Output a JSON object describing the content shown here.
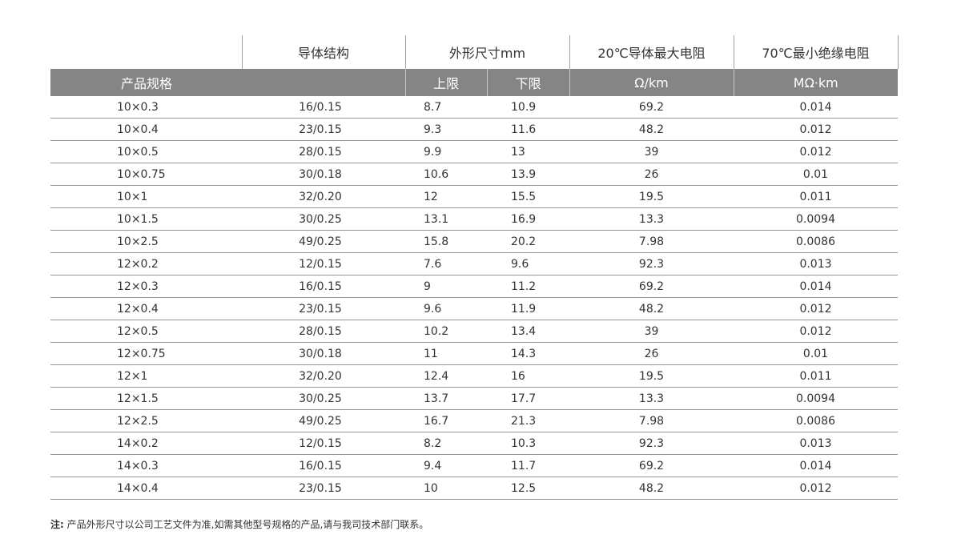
{
  "header": {
    "conductor": "导体结构",
    "outer_size": "外形尺寸mm",
    "resistance": "20℃导体最大电阻",
    "insulation": "70℃最小绝缘电阻",
    "spec": "产品规格",
    "upper": "上限",
    "lower": "下限",
    "resistance_unit": "Ω/km",
    "insulation_unit": "MΩ·km"
  },
  "rows": [
    {
      "spec": "10×0.3",
      "conductor": "16/0.15",
      "upper": "8.7",
      "lower": "10.9",
      "resistance": "69.2",
      "insulation": "0.014"
    },
    {
      "spec": "10×0.4",
      "conductor": "23/0.15",
      "upper": "9.3",
      "lower": "11.6",
      "resistance": "48.2",
      "insulation": "0.012"
    },
    {
      "spec": "10×0.5",
      "conductor": "28/0.15",
      "upper": "9.9",
      "lower": "13",
      "resistance": "39",
      "insulation": "0.012"
    },
    {
      "spec": "10×0.75",
      "conductor": "30/0.18",
      "upper": "10.6",
      "lower": "13.9",
      "resistance": "26",
      "insulation": "0.01"
    },
    {
      "spec": "10×1",
      "conductor": "32/0.20",
      "upper": "12",
      "lower": "15.5",
      "resistance": "19.5",
      "insulation": "0.011"
    },
    {
      "spec": "10×1.5",
      "conductor": "30/0.25",
      "upper": "13.1",
      "lower": "16.9",
      "resistance": "13.3",
      "insulation": "0.0094"
    },
    {
      "spec": "10×2.5",
      "conductor": "49/0.25",
      "upper": "15.8",
      "lower": "20.2",
      "resistance": "7.98",
      "insulation": "0.0086"
    },
    {
      "spec": "12×0.2",
      "conductor": "12/0.15",
      "upper": "7.6",
      "lower": "9.6",
      "resistance": "92.3",
      "insulation": "0.013"
    },
    {
      "spec": "12×0.3",
      "conductor": "16/0.15",
      "upper": "9",
      "lower": "11.2",
      "resistance": "69.2",
      "insulation": "0.014"
    },
    {
      "spec": "12×0.4",
      "conductor": "23/0.15",
      "upper": "9.6",
      "lower": "11.9",
      "resistance": "48.2",
      "insulation": "0.012"
    },
    {
      "spec": "12×0.5",
      "conductor": "28/0.15",
      "upper": "10.2",
      "lower": "13.4",
      "resistance": "39",
      "insulation": "0.012"
    },
    {
      "spec": "12×0.75",
      "conductor": "30/0.18",
      "upper": "11",
      "lower": "14.3",
      "resistance": "26",
      "insulation": "0.01"
    },
    {
      "spec": "12×1",
      "conductor": "32/0.20",
      "upper": "12.4",
      "lower": "16",
      "resistance": "19.5",
      "insulation": "0.011"
    },
    {
      "spec": "12×1.5",
      "conductor": "30/0.25",
      "upper": "13.7",
      "lower": "17.7",
      "resistance": "13.3",
      "insulation": "0.0094"
    },
    {
      "spec": "12×2.5",
      "conductor": "49/0.25",
      "upper": "16.7",
      "lower": "21.3",
      "resistance": "7.98",
      "insulation": "0.0086"
    },
    {
      "spec": "14×0.2",
      "conductor": "12/0.15",
      "upper": "8.2",
      "lower": "10.3",
      "resistance": "92.3",
      "insulation": "0.013"
    },
    {
      "spec": "14×0.3",
      "conductor": "16/0.15",
      "upper": "9.4",
      "lower": "11.7",
      "resistance": "69.2",
      "insulation": "0.014"
    },
    {
      "spec": "14×0.4",
      "conductor": "23/0.15",
      "upper": "10",
      "lower": "12.5",
      "resistance": "48.2",
      "insulation": "0.012"
    }
  ],
  "note": {
    "label": "注:",
    "text": "产品外形尺寸以公司工艺文件为准,如需其他型号规格的产品,请与我司技术部门联系。"
  }
}
